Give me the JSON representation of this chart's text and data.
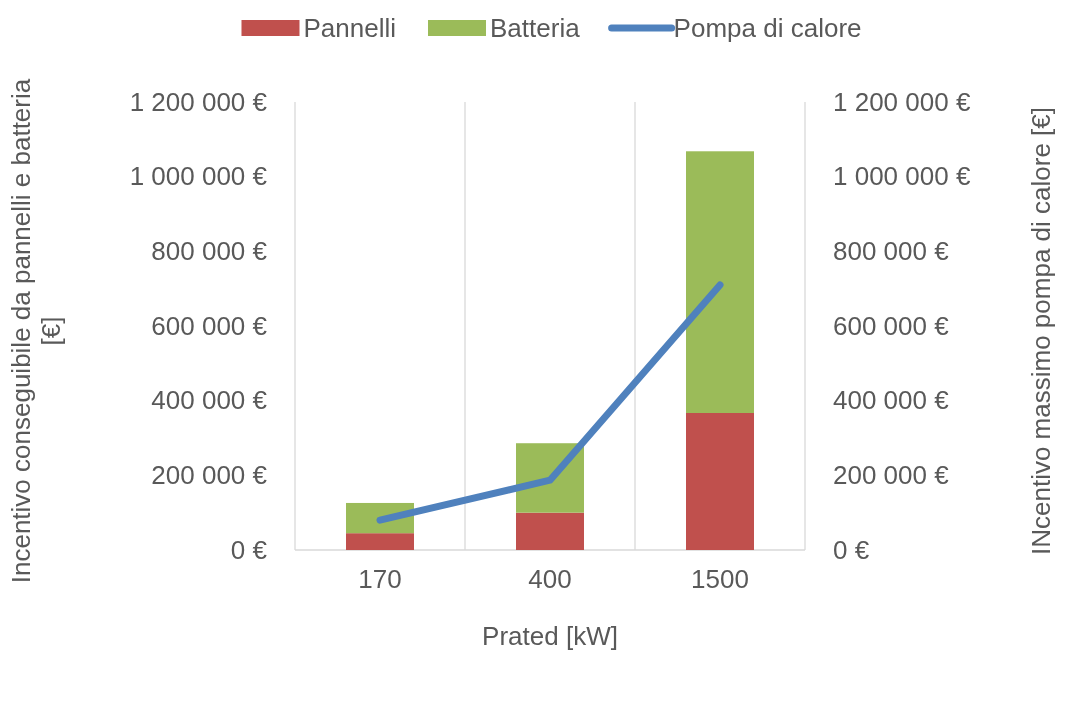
{
  "chart_data": {
    "type": "bar",
    "stacked": true,
    "xlabel": "Prated [kW]",
    "ylabel": "Incentivo conseguibile da pannelli e batteria [€]",
    "y2label": "INcentivo massimo pompa di calore [€]",
    "categories": [
      "170",
      "400",
      "1500"
    ],
    "series": [
      {
        "name": "Pannelli",
        "color": "#c0504d",
        "values": [
          45000,
          100000,
          367000
        ]
      },
      {
        "name": "Batteria",
        "color": "#9bbb59",
        "values": [
          81000,
          186000,
          701000
        ]
      },
      {
        "name": "Pompa di calore",
        "type": "line",
        "axis": "y2",
        "color": "#4f81bd",
        "values": [
          80000,
          187000,
          710000
        ]
      }
    ],
    "ylim": [
      0,
      1200000
    ],
    "yticks": [
      {
        "value": 0,
        "label": "0 €"
      },
      {
        "value": 200000,
        "label": "200 000 €"
      },
      {
        "value": 400000,
        "label": "400 000 €"
      },
      {
        "value": 600000,
        "label": "600 000 €"
      },
      {
        "value": 800000,
        "label": "800 000 €"
      },
      {
        "value": 1000000,
        "label": "1 000 000 €"
      },
      {
        "value": 1200000,
        "label": "1 200 000 €"
      }
    ],
    "y2lim": [
      0,
      1200000
    ],
    "y2ticks": [
      {
        "value": 0,
        "label": "0 €"
      },
      {
        "value": 200000,
        "label": "200 000 €"
      },
      {
        "value": 400000,
        "label": "400 000 €"
      },
      {
        "value": 600000,
        "label": "600 000 €"
      },
      {
        "value": 800000,
        "label": "800 000 €"
      },
      {
        "value": 1000000,
        "label": "1 000 000 €"
      },
      {
        "value": 1200000,
        "label": "1 200 000 €"
      }
    ],
    "grid": "x",
    "legend": "top"
  }
}
